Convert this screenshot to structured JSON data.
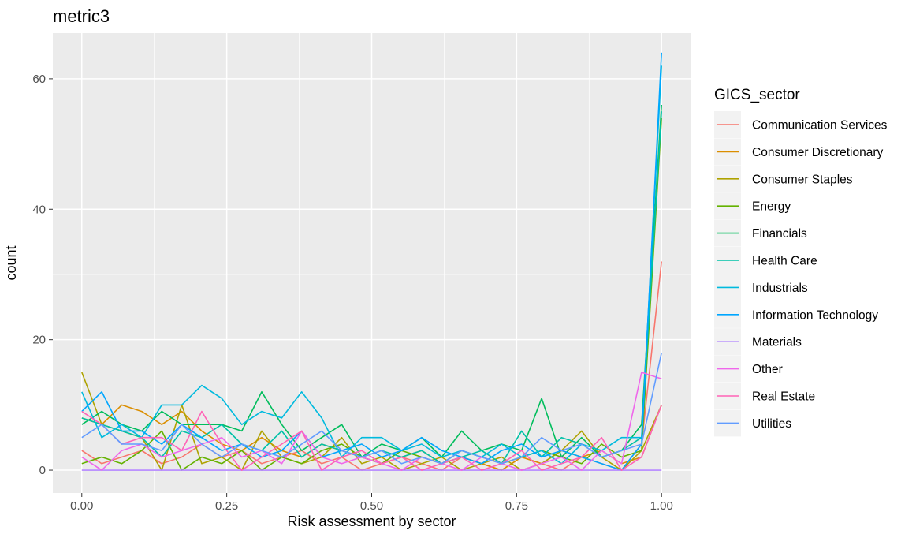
{
  "chart_data": {
    "type": "line",
    "title": "metric3",
    "xlabel": "Risk assessment by sector",
    "ylabel": "count",
    "xlim": [
      -0.05,
      1.05
    ],
    "ylim": [
      -3.5,
      67
    ],
    "x_ticks": [
      0,
      0.25,
      0.5,
      0.75,
      1
    ],
    "x_tick_labels": [
      "0.00",
      "0.25",
      "0.50",
      "0.75",
      "1.00"
    ],
    "y_ticks": [
      0,
      20,
      40,
      60
    ],
    "y_tick_labels": [
      "0",
      "20",
      "40",
      "60"
    ],
    "grid": true,
    "legend": {
      "title": "GICS_sector",
      "placement": "right"
    },
    "x": [
      0,
      0.0345,
      0.069,
      0.1034,
      0.1379,
      0.1724,
      0.2069,
      0.2414,
      0.2759,
      0.3103,
      0.3448,
      0.3793,
      0.4138,
      0.4483,
      0.4828,
      0.5172,
      0.5517,
      0.5862,
      0.6207,
      0.6552,
      0.6897,
      0.7241,
      0.7586,
      0.7931,
      0.8276,
      0.8621,
      0.8966,
      0.931,
      0.9655,
      1
    ],
    "series": [
      {
        "name": "Communication Services",
        "color": "#F8766D",
        "values": [
          3,
          1,
          2,
          3,
          1,
          2,
          4,
          2,
          3,
          1,
          2,
          3,
          1,
          2,
          0,
          1,
          2,
          1,
          0,
          2,
          1,
          0,
          2,
          1,
          0,
          2,
          1,
          0,
          4,
          32
        ]
      },
      {
        "name": "Consumer Discretionary",
        "color": "#DB8E00",
        "values": [
          8,
          7,
          10,
          9,
          7,
          9,
          6,
          4,
          3,
          5,
          3,
          2,
          4,
          3,
          2,
          1,
          2,
          3,
          1,
          2,
          1,
          0,
          2,
          1,
          3,
          2,
          3,
          1,
          2,
          10
        ]
      },
      {
        "name": "Consumer Staples",
        "color": "#AEA200",
        "values": [
          15,
          7,
          6,
          5,
          0,
          10,
          1,
          2,
          0,
          6,
          2,
          1,
          2,
          5,
          1,
          2,
          0,
          1,
          2,
          0,
          1,
          2,
          0,
          1,
          3,
          6,
          2,
          0,
          3,
          10
        ]
      },
      {
        "name": "Energy",
        "color": "#64B200",
        "values": [
          1,
          2,
          1,
          3,
          6,
          0,
          2,
          1,
          3,
          0,
          2,
          1,
          3,
          4,
          2,
          1,
          3,
          2,
          1,
          3,
          2,
          1,
          2,
          3,
          2,
          1,
          4,
          2,
          3,
          54
        ]
      },
      {
        "name": "Financials",
        "color": "#00BD5C",
        "values": [
          7,
          9,
          7,
          6,
          9,
          7,
          7,
          7,
          6,
          12,
          7,
          3,
          5,
          7,
          2,
          4,
          3,
          5,
          2,
          6,
          3,
          4,
          3,
          11,
          2,
          5,
          2,
          3,
          7,
          56
        ]
      },
      {
        "name": "Health Care",
        "color": "#00C1A7",
        "values": [
          8,
          7,
          6,
          5,
          2,
          6,
          5,
          7,
          4,
          3,
          6,
          2,
          4,
          3,
          2,
          3,
          2,
          3,
          1,
          2,
          3,
          1,
          6,
          2,
          5,
          4,
          2,
          3,
          5,
          55
        ]
      },
      {
        "name": "Industrials",
        "color": "#00BADE",
        "values": [
          12,
          5,
          7,
          5,
          10,
          10,
          13,
          11,
          7,
          9,
          8,
          12,
          8,
          2,
          5,
          5,
          3,
          4,
          2,
          3,
          2,
          4,
          2,
          3,
          1,
          4,
          3,
          5,
          5,
          62
        ]
      },
      {
        "name": "Information Technology",
        "color": "#00A6FF",
        "values": [
          9,
          12,
          6,
          6,
          4,
          7,
          5,
          3,
          4,
          2,
          3,
          6,
          2,
          3,
          4,
          2,
          3,
          5,
          3,
          2,
          1,
          3,
          4,
          2,
          3,
          2,
          1,
          0,
          4,
          64
        ]
      },
      {
        "name": "Materials",
        "color": "#B385FF",
        "values": [
          0,
          0,
          0,
          0,
          0,
          0,
          0,
          0,
          0,
          0,
          0,
          0,
          0,
          0,
          0,
          0,
          0,
          0,
          0,
          0,
          0,
          0,
          0,
          0,
          0,
          0,
          0,
          0,
          0,
          0
        ]
      },
      {
        "name": "Other",
        "color": "#EF67EB",
        "values": [
          2,
          0,
          3,
          4,
          2,
          3,
          4,
          5,
          2,
          3,
          1,
          6,
          2,
          1,
          2,
          1,
          0,
          2,
          1,
          0,
          2,
          1,
          0,
          1,
          2,
          0,
          3,
          1,
          15,
          14
        ]
      },
      {
        "name": "Real Estate",
        "color": "#FF63B6",
        "values": [
          9,
          7,
          4,
          5,
          5,
          3,
          9,
          4,
          0,
          2,
          4,
          6,
          0,
          2,
          3,
          1,
          2,
          0,
          1,
          2,
          0,
          1,
          3,
          0,
          1,
          2,
          5,
          0,
          2,
          10
        ]
      },
      {
        "name": "Utilities",
        "color": "#619CFF",
        "values": [
          5,
          7,
          4,
          4,
          3,
          7,
          4,
          2,
          4,
          3,
          2,
          4,
          6,
          3,
          2,
          3,
          1,
          2,
          1,
          3,
          2,
          1,
          2,
          5,
          3,
          4,
          2,
          3,
          4,
          18
        ]
      }
    ]
  }
}
